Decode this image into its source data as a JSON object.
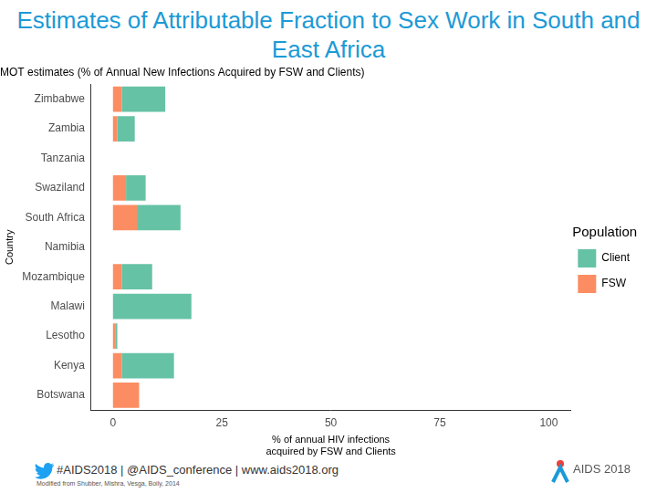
{
  "page": {
    "heading": "Estimates of Attributable Fraction to Sex Work in South and East Africa",
    "footer": "#AIDS2018 | @AIDS_conference | www.aids2018.org",
    "source": "Modified from Shubber, Mishra, Vesga, Boily, 2014",
    "logo": "AIDS 2018"
  },
  "chart_data": {
    "type": "bar",
    "orientation": "horizontal",
    "stacked": true,
    "title": "MOT estimates (% of Annual New Infections Acquired by FSW and Clients)",
    "x_label": [
      "% of annual HIV infections",
      "acquired by FSW and Clients"
    ],
    "y_label": "Country",
    "categories": [
      "Zimbabwe",
      "Zambia",
      "Tanzania",
      "Swaziland",
      "South Africa",
      "Namibia",
      "Mozambique",
      "Malawi",
      "Lesotho",
      "Kenya",
      "Botswana"
    ],
    "series": [
      {
        "name": "FSW",
        "color": "#fc8d62",
        "values": [
          2,
          1,
          0,
          3,
          5.5,
          0,
          2,
          0,
          0.5,
          2,
          6
        ]
      },
      {
        "name": "Client",
        "color": "#66c2a5",
        "values": [
          10,
          4,
          0,
          4.5,
          10,
          0,
          7,
          18,
          0.5,
          12,
          0
        ]
      }
    ],
    "xlim": [
      -5,
      105
    ],
    "xticks": [
      0,
      25,
      50,
      75,
      100
    ],
    "grid": false,
    "legend": "right",
    "legend_title": "Population"
  }
}
